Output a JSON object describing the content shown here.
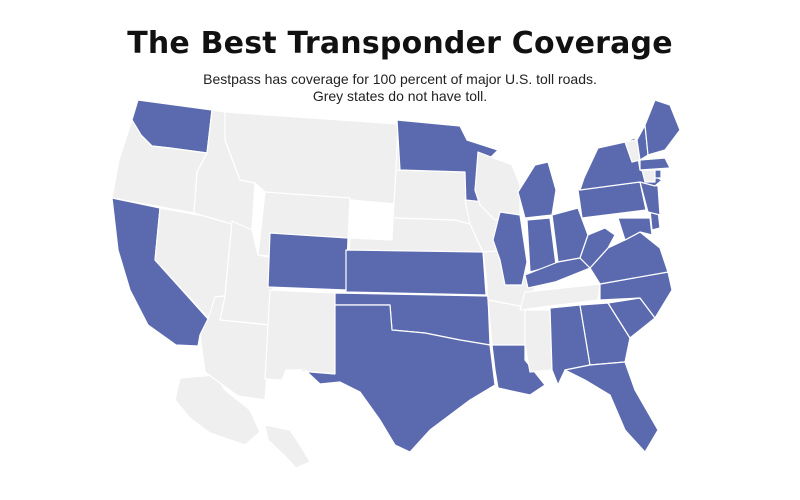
{
  "title": "The Best Transponder Coverage",
  "subtitle_line1": "Bestpass has coverage for 100 percent of major U.S. toll roads.",
  "subtitle_line2": "Grey states do not have toll.",
  "colors": {
    "toll": "#5b6aaf",
    "no_toll": "#efefef",
    "border": "#ffffff"
  },
  "states": [
    {
      "code": "WA",
      "toll": true
    },
    {
      "code": "OR",
      "toll": false
    },
    {
      "code": "CA",
      "toll": true
    },
    {
      "code": "NV",
      "toll": false
    },
    {
      "code": "ID",
      "toll": false
    },
    {
      "code": "MT",
      "toll": false
    },
    {
      "code": "WY",
      "toll": false
    },
    {
      "code": "UT",
      "toll": false
    },
    {
      "code": "AZ",
      "toll": false
    },
    {
      "code": "CO",
      "toll": true
    },
    {
      "code": "NM",
      "toll": false
    },
    {
      "code": "ND",
      "toll": false
    },
    {
      "code": "SD",
      "toll": false
    },
    {
      "code": "NE",
      "toll": false
    },
    {
      "code": "KS",
      "toll": true
    },
    {
      "code": "OK",
      "toll": true
    },
    {
      "code": "TX",
      "toll": true
    },
    {
      "code": "MN",
      "toll": true
    },
    {
      "code": "IA",
      "toll": false
    },
    {
      "code": "MO",
      "toll": false
    },
    {
      "code": "AR",
      "toll": false
    },
    {
      "code": "LA",
      "toll": true
    },
    {
      "code": "WI",
      "toll": false
    },
    {
      "code": "IL",
      "toll": true
    },
    {
      "code": "MI",
      "toll": true
    },
    {
      "code": "IN",
      "toll": true
    },
    {
      "code": "OH",
      "toll": true
    },
    {
      "code": "KY",
      "toll": true
    },
    {
      "code": "TN",
      "toll": false
    },
    {
      "code": "MS",
      "toll": false
    },
    {
      "code": "AL",
      "toll": true
    },
    {
      "code": "GA",
      "toll": true
    },
    {
      "code": "FL",
      "toll": true
    },
    {
      "code": "SC",
      "toll": true
    },
    {
      "code": "NC",
      "toll": true
    },
    {
      "code": "VA",
      "toll": true
    },
    {
      "code": "WV",
      "toll": true
    },
    {
      "code": "MD",
      "toll": true
    },
    {
      "code": "DE",
      "toll": true
    },
    {
      "code": "PA",
      "toll": true
    },
    {
      "code": "NJ",
      "toll": true
    },
    {
      "code": "NY",
      "toll": true
    },
    {
      "code": "CT",
      "toll": false
    },
    {
      "code": "RI",
      "toll": true
    },
    {
      "code": "MA",
      "toll": true
    },
    {
      "code": "VT",
      "toll": false
    },
    {
      "code": "NH",
      "toll": true
    },
    {
      "code": "ME",
      "toll": true
    },
    {
      "code": "AK",
      "toll": false
    },
    {
      "code": "HI",
      "toll": false
    }
  ]
}
